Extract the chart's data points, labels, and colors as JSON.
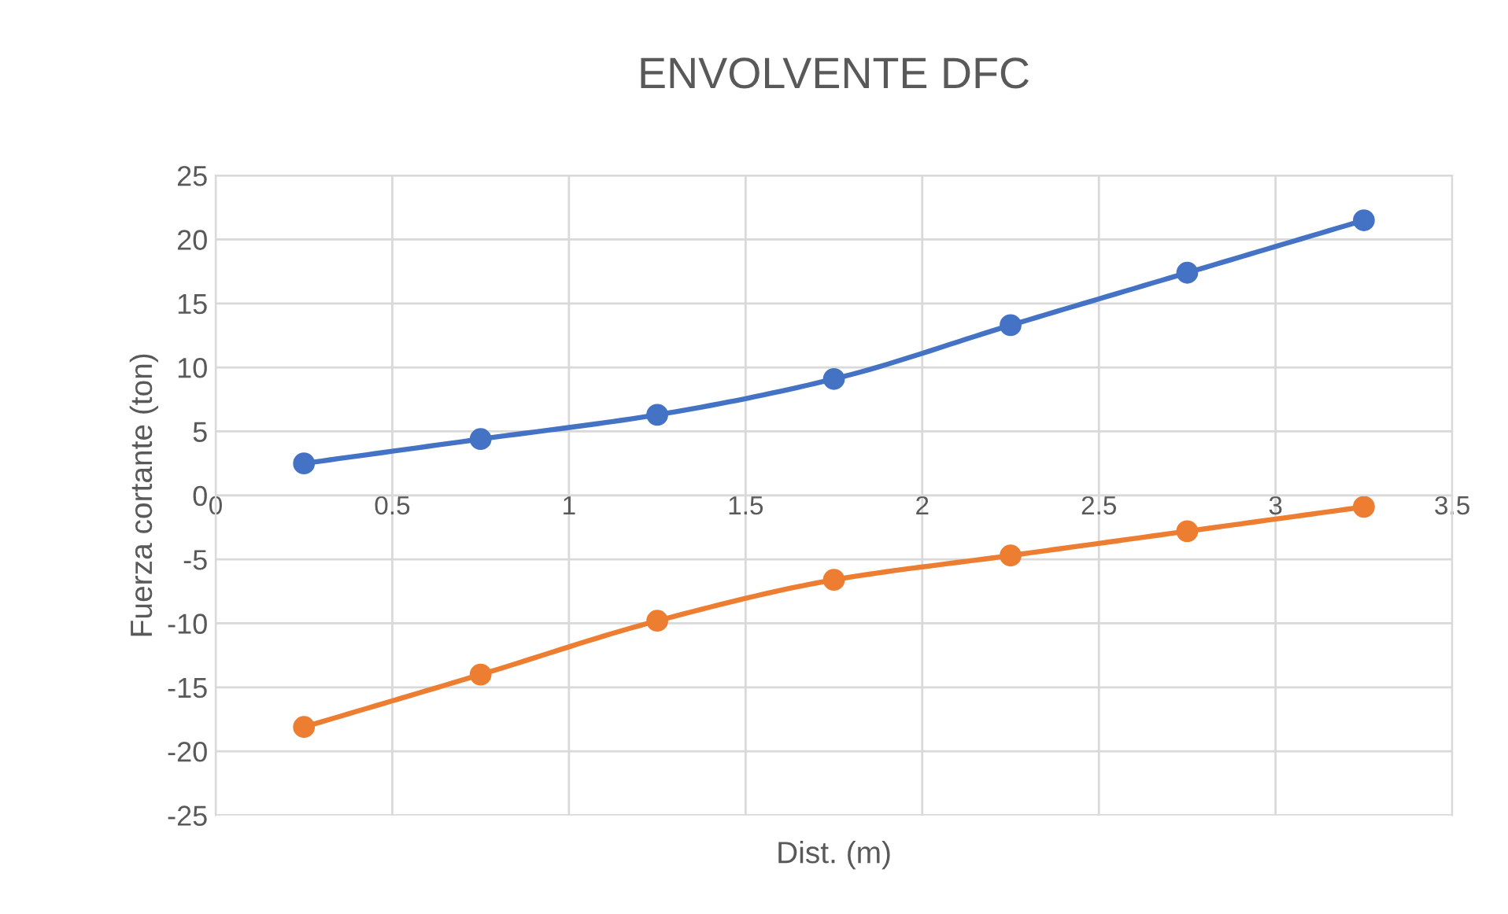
{
  "chart_data": {
    "type": "line",
    "title": "ENVOLVENTE DFC",
    "xlabel": "Dist. (m)",
    "ylabel": "Fuerza cortante (ton)",
    "x": [
      0.25,
      0.75,
      1.25,
      1.75,
      2.25,
      2.75,
      3.25
    ],
    "series": [
      {
        "color": "#4472c4",
        "values": [
          2.5,
          4.4,
          6.3,
          9.1,
          13.3,
          17.4,
          21.5
        ]
      },
      {
        "color": "#ed7d31",
        "values": [
          -18.1,
          -14.0,
          -9.8,
          -6.6,
          -4.7,
          -2.8,
          -0.9
        ]
      }
    ],
    "xlim": [
      0,
      3.5
    ],
    "xticks": [
      0,
      0.5,
      1,
      1.5,
      2,
      2.5,
      3,
      3.5
    ],
    "ylim": [
      -25,
      25
    ],
    "yticks": [
      -25,
      -20,
      -15,
      -10,
      -5,
      0,
      5,
      10,
      15,
      20,
      25
    ],
    "grid": true,
    "marker": "circle",
    "line_style": "solid"
  }
}
